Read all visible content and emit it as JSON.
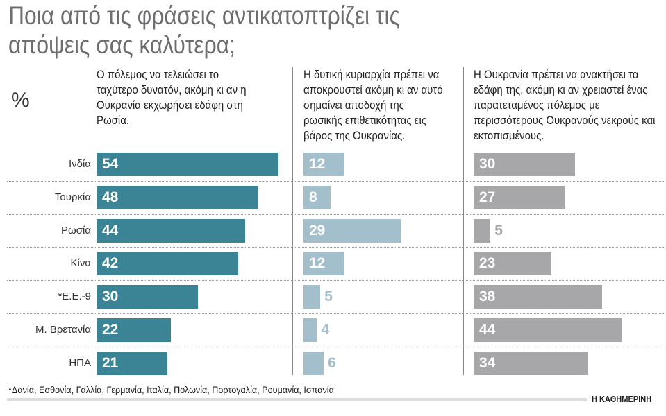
{
  "chart_data": {
    "type": "bar",
    "title": "Ποια από τις φράσεις αντικατοπτρίζει τις απόψεις σας καλύτερα;",
    "unit": "%",
    "categories": [
      "Ινδία",
      "Τουρκία",
      "Ρωσία",
      "Κίνα",
      "*Ε.Ε.-9",
      "Μ. Βρετανία",
      "ΗΠΑ"
    ],
    "series": [
      {
        "name": "Ο πόλεμος να τελειώσει το ταχύτερο δυνατόν, ακόμη κι αν η Ουκρανία εκχωρήσει εδάφη στη Ρωσία.",
        "color": "#3a8496",
        "values": [
          54,
          48,
          44,
          42,
          30,
          22,
          21
        ]
      },
      {
        "name": "Η δυτική κυριαρχία πρέπει να αποκρουστεί ακόμη κι αν αυτό σημαίνει αποδοχή της ρωσικής επιθετικότητας εις βάρος της Ουκρανίας.",
        "color": "#a3bfcb",
        "values": [
          12,
          8,
          29,
          12,
          5,
          4,
          6
        ]
      },
      {
        "name": "Η Ουκρανία πρέπει να ανακτήσει τα εδάφη της, ακόμη κι αν χρειαστεί ένας παρατεταμένος πόλεμος με περισσότερους Ουκρανούς νεκρούς και εκτοπισμένους.",
        "color": "#a7a7a9",
        "values": [
          30,
          27,
          5,
          23,
          38,
          44,
          34
        ]
      }
    ],
    "footnote": "*Δανία, Εσθονία, Γαλλία, Γερμανία, Ιταλία, Πολωνία, Πορτογαλία, Ρουμανία, Ισπανία",
    "source": "Η ΚΑΘΗΜΕΡΙΝΗ"
  }
}
